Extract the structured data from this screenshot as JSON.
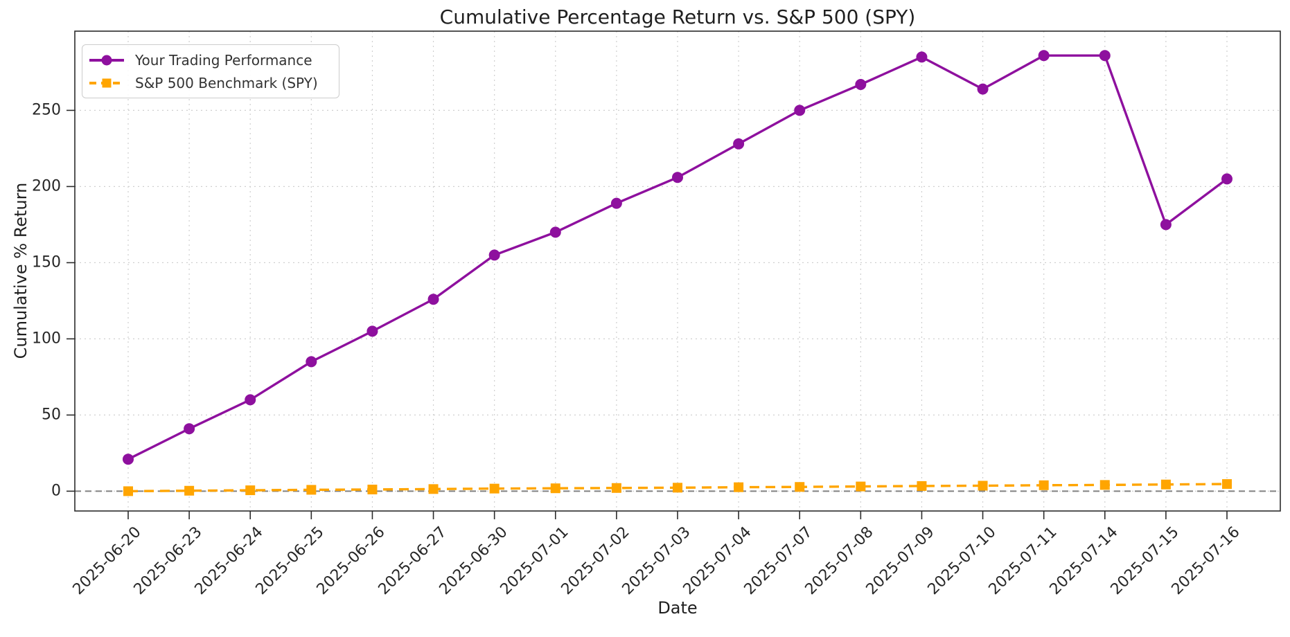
{
  "chart_data": {
    "type": "line",
    "title": "Cumulative Percentage Return vs. S&P 500 (SPY)",
    "xlabel": "Date",
    "ylabel": "Cumulative % Return",
    "categories": [
      "2025-06-20",
      "2025-06-23",
      "2025-06-24",
      "2025-06-25",
      "2025-06-26",
      "2025-06-27",
      "2025-06-30",
      "2025-07-01",
      "2025-07-02",
      "2025-07-03",
      "2025-07-04",
      "2025-07-07",
      "2025-07-08",
      "2025-07-09",
      "2025-07-10",
      "2025-07-11",
      "2025-07-14",
      "2025-07-15",
      "2025-07-16"
    ],
    "series": [
      {
        "name": "Your Trading Performance",
        "color": "#8E109E",
        "marker": "circle",
        "line_style": "solid",
        "values": [
          21,
          41,
          60,
          85,
          105,
          126,
          155,
          170,
          189,
          206,
          228,
          250,
          267,
          285,
          264,
          286,
          286,
          175,
          205
        ]
      },
      {
        "name": "S&P 500 Benchmark (SPY)",
        "color": "#FFA500",
        "marker": "square",
        "line_style": "dashed",
        "values": [
          0.0,
          0.3,
          0.6,
          0.9,
          1.1,
          1.4,
          1.7,
          1.9,
          2.1,
          2.3,
          2.6,
          2.8,
          3.1,
          3.4,
          3.6,
          3.9,
          4.1,
          4.4,
          4.7
        ]
      }
    ],
    "yticks": [
      0,
      50,
      100,
      150,
      200,
      250
    ],
    "ylim": [
      -13,
      302
    ],
    "grid": true,
    "zero_line": true,
    "legend_position": "upper left"
  },
  "colors": {
    "background": "#ffffff",
    "grid": "#cfcfcf",
    "zero_line": "#808080",
    "spine": "#2b2b2b",
    "tick_text": "#262626",
    "label_text": "#1f1f1f",
    "legend_border": "#cccccc",
    "legend_text": "#333333"
  }
}
